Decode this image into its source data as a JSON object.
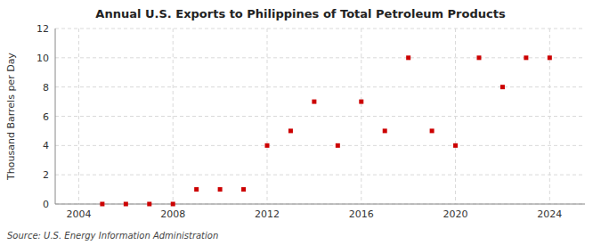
{
  "chart_data": {
    "type": "scatter",
    "title": "Annual U.S. Exports to Philippines of Total Petroleum Products",
    "ylabel": "Thousand Barrels per Day",
    "source": "Source: U.S. Energy Information Administration",
    "x": [
      2005,
      2006,
      2007,
      2008,
      2009,
      2010,
      2011,
      2012,
      2013,
      2014,
      2015,
      2016,
      2017,
      2018,
      2019,
      2020,
      2021,
      2022,
      2023,
      2024
    ],
    "values": [
      0,
      0,
      0,
      0,
      1,
      1,
      1,
      4,
      5,
      7,
      4,
      7,
      5,
      10,
      5,
      4,
      10,
      8,
      10,
      10
    ],
    "color": "#cc0000",
    "marker": "square",
    "xlim": [
      2003.0,
      2025.5
    ],
    "ylim": [
      0,
      12
    ],
    "xticks": [
      2004,
      2008,
      2012,
      2016,
      2020,
      2024
    ],
    "yticks": [
      0,
      2,
      4,
      6,
      8,
      10,
      12
    ],
    "grid": true
  }
}
